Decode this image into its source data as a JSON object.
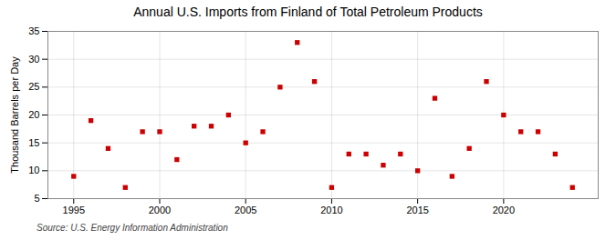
{
  "chart_data": {
    "type": "scatter",
    "title": "Annual U.S. Imports from Finland of Total Petroleum Products",
    "ylabel": "Thousand Barrels per Day",
    "source": "Source: U.S. Energy Information Administration",
    "x": [
      1995,
      1996,
      1997,
      1998,
      1999,
      2000,
      2001,
      2002,
      2003,
      2004,
      2005,
      2006,
      2007,
      2008,
      2009,
      2010,
      2011,
      2012,
      2013,
      2014,
      2015,
      2016,
      2017,
      2018,
      2019,
      2020,
      2021,
      2022,
      2023,
      2024
    ],
    "values": [
      9,
      19,
      14,
      7,
      17,
      17,
      12,
      18,
      18,
      20,
      15,
      17,
      25,
      33,
      26,
      7,
      13,
      13,
      11,
      13,
      10,
      23,
      9,
      14,
      26,
      20,
      17,
      17,
      13,
      7
    ],
    "color": "#cc0000",
    "marker": "square",
    "xlim": [
      1993.5,
      2025.5
    ],
    "xticks": [
      1995,
      2000,
      2005,
      2010,
      2015,
      2020
    ],
    "ylim": [
      5,
      35
    ],
    "yticks": [
      5,
      10,
      15,
      20,
      25,
      30,
      35
    ],
    "grid": true
  }
}
